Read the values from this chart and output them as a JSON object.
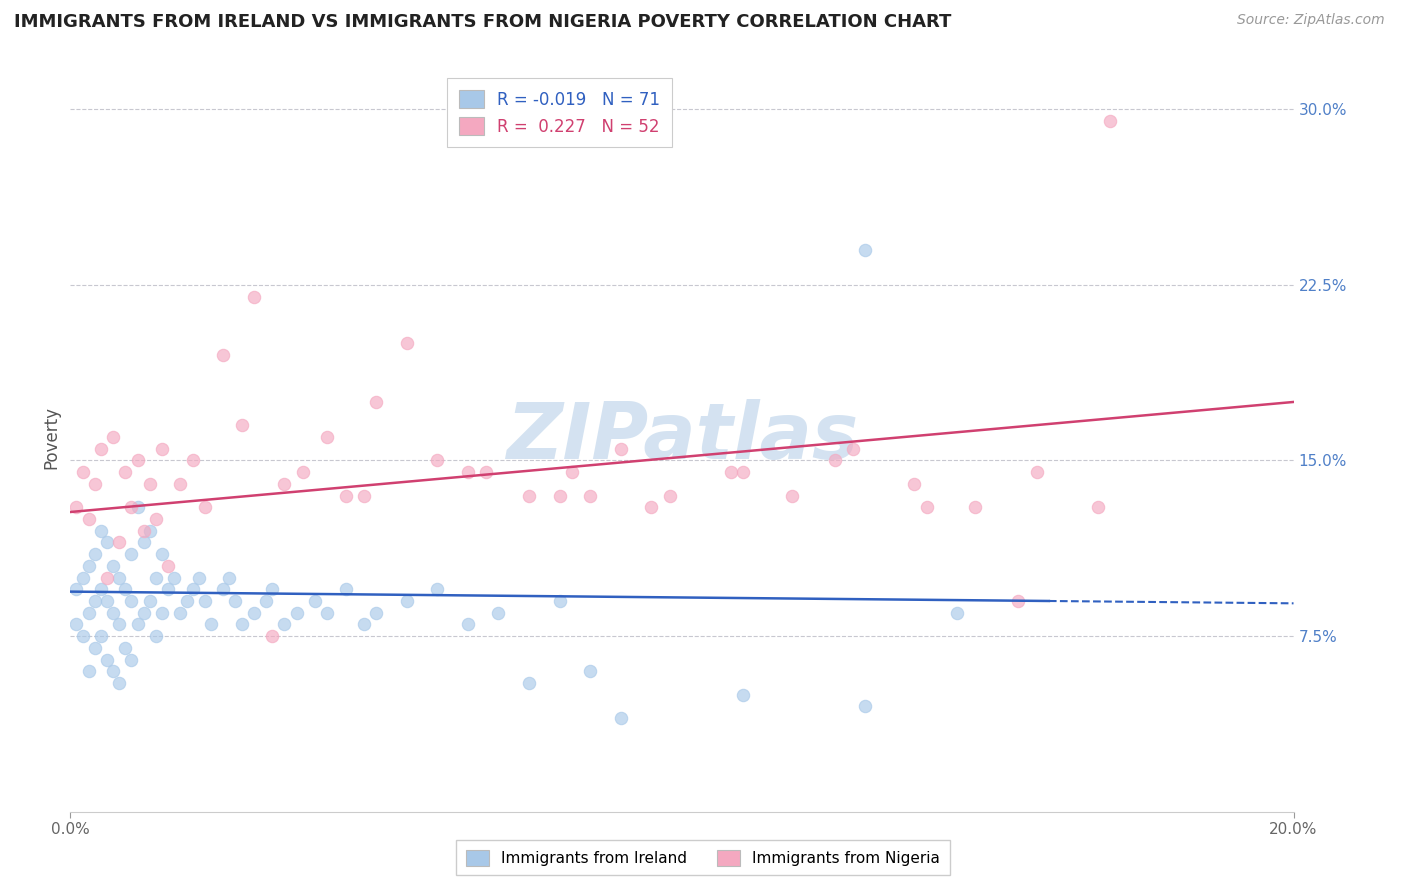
{
  "title": "IMMIGRANTS FROM IRELAND VS IMMIGRANTS FROM NIGERIA POVERTY CORRELATION CHART",
  "source": "Source: ZipAtlas.com",
  "ylabel": "Poverty",
  "xlim": [
    0.0,
    0.2
  ],
  "ylim": [
    0.0,
    0.32
  ],
  "ytick_vals": [
    0.075,
    0.15,
    0.225,
    0.3
  ],
  "ytick_labels": [
    "7.5%",
    "15.0%",
    "22.5%",
    "30.0%"
  ],
  "xtick_vals": [
    0.0,
    0.2
  ],
  "xtick_labels": [
    "0.0%",
    "20.0%"
  ],
  "ireland_R": -0.019,
  "ireland_N": 71,
  "nigeria_R": 0.227,
  "nigeria_N": 52,
  "ireland_color": "#A8C8E8",
  "nigeria_color": "#F4A8C0",
  "ireland_line_color": "#3060C0",
  "nigeria_line_color": "#D04070",
  "background_color": "#FFFFFF",
  "grid_color": "#C8C8D0",
  "watermark": "ZIPatlas",
  "watermark_color": "#B8D0E8",
  "ireland_line_solid_end": 0.16,
  "ireland_line_start_y": 0.094,
  "ireland_line_end_y": 0.089,
  "nigeria_line_start_y": 0.128,
  "nigeria_line_end_y": 0.175,
  "ireland_x": [
    0.001,
    0.001,
    0.002,
    0.002,
    0.003,
    0.003,
    0.003,
    0.004,
    0.004,
    0.004,
    0.005,
    0.005,
    0.005,
    0.006,
    0.006,
    0.006,
    0.007,
    0.007,
    0.007,
    0.008,
    0.008,
    0.008,
    0.009,
    0.009,
    0.01,
    0.01,
    0.01,
    0.011,
    0.011,
    0.012,
    0.012,
    0.013,
    0.013,
    0.014,
    0.014,
    0.015,
    0.015,
    0.016,
    0.017,
    0.018,
    0.019,
    0.02,
    0.021,
    0.022,
    0.023,
    0.025,
    0.026,
    0.027,
    0.028,
    0.03,
    0.032,
    0.033,
    0.035,
    0.037,
    0.04,
    0.042,
    0.045,
    0.048,
    0.05,
    0.055,
    0.06,
    0.065,
    0.07,
    0.075,
    0.08,
    0.085,
    0.09,
    0.11,
    0.13,
    0.145,
    0.13
  ],
  "ireland_y": [
    0.095,
    0.08,
    0.1,
    0.075,
    0.105,
    0.085,
    0.06,
    0.11,
    0.09,
    0.07,
    0.12,
    0.095,
    0.075,
    0.115,
    0.09,
    0.065,
    0.105,
    0.085,
    0.06,
    0.1,
    0.08,
    0.055,
    0.095,
    0.07,
    0.11,
    0.09,
    0.065,
    0.13,
    0.08,
    0.115,
    0.085,
    0.12,
    0.09,
    0.1,
    0.075,
    0.11,
    0.085,
    0.095,
    0.1,
    0.085,
    0.09,
    0.095,
    0.1,
    0.09,
    0.08,
    0.095,
    0.1,
    0.09,
    0.08,
    0.085,
    0.09,
    0.095,
    0.08,
    0.085,
    0.09,
    0.085,
    0.095,
    0.08,
    0.085,
    0.09,
    0.095,
    0.08,
    0.085,
    0.055,
    0.09,
    0.06,
    0.04,
    0.05,
    0.045,
    0.085,
    0.24
  ],
  "nigeria_x": [
    0.001,
    0.002,
    0.003,
    0.004,
    0.005,
    0.006,
    0.007,
    0.008,
    0.009,
    0.01,
    0.011,
    0.012,
    0.013,
    0.014,
    0.015,
    0.016,
    0.018,
    0.02,
    0.022,
    0.025,
    0.028,
    0.03,
    0.033,
    0.038,
    0.042,
    0.048,
    0.055,
    0.06,
    0.068,
    0.075,
    0.082,
    0.09,
    0.098,
    0.108,
    0.118,
    0.128,
    0.138,
    0.148,
    0.158,
    0.168,
    0.05,
    0.035,
    0.045,
    0.065,
    0.08,
    0.095,
    0.11,
    0.125,
    0.14,
    0.155,
    0.17,
    0.085
  ],
  "nigeria_y": [
    0.13,
    0.145,
    0.125,
    0.14,
    0.155,
    0.1,
    0.16,
    0.115,
    0.145,
    0.13,
    0.15,
    0.12,
    0.14,
    0.125,
    0.155,
    0.105,
    0.14,
    0.15,
    0.13,
    0.195,
    0.165,
    0.22,
    0.075,
    0.145,
    0.16,
    0.135,
    0.2,
    0.15,
    0.145,
    0.135,
    0.145,
    0.155,
    0.135,
    0.145,
    0.135,
    0.155,
    0.14,
    0.13,
    0.145,
    0.13,
    0.175,
    0.14,
    0.135,
    0.145,
    0.135,
    0.13,
    0.145,
    0.15,
    0.13,
    0.09,
    0.295,
    0.135
  ]
}
